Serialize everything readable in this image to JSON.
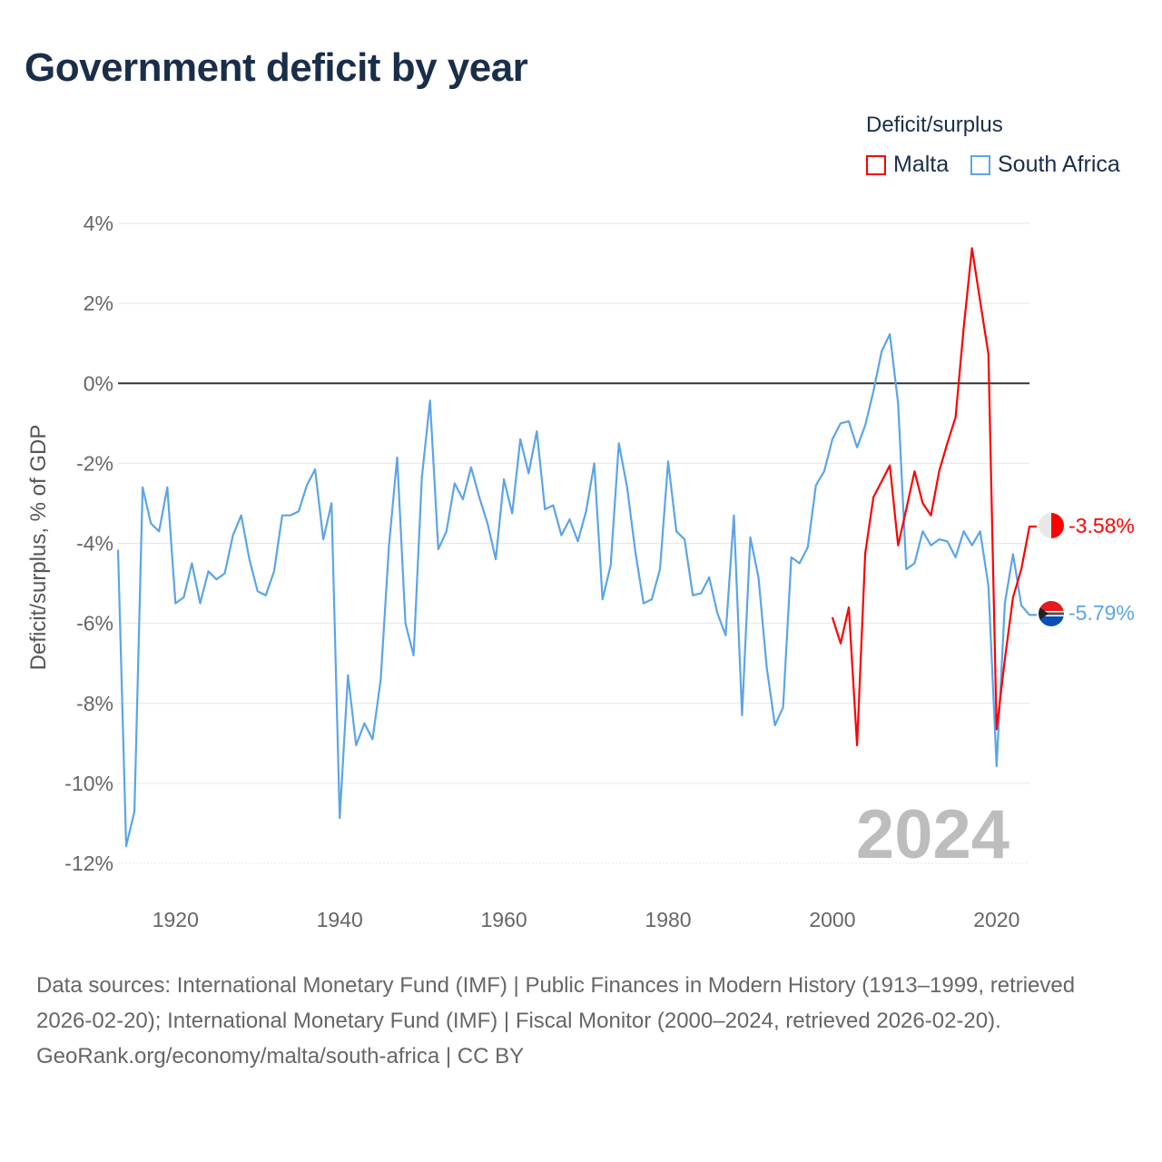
{
  "title": "Government deficit by year",
  "legend": {
    "title": "Deficit/surplus",
    "items": [
      {
        "label": "Malta",
        "color": "#ff0000"
      },
      {
        "label": "South Africa",
        "color": "#5ba4ea"
      }
    ]
  },
  "year_label": "2024",
  "end_labels": {
    "malta": "-3.58%",
    "south_africa": "-5.79%"
  },
  "source": {
    "text": "Data sources: International Monetary Fund (IMF) | Public Finances in Modern History (1913–1999, retrieved 2026-02-20); International Monetary Fund (IMF) | Fiscal Monitor (2000–2024, retrieved 2026-02-20).",
    "credit": "GeoRank.org/economy/malta/south-africa | CC BY"
  },
  "chart_data": {
    "type": "line",
    "title": "Government deficit by year",
    "xlabel": "",
    "ylabel": "Deficit/surplus, % of GDP",
    "xlim": [
      1913,
      2024
    ],
    "ylim": [
      -12,
      4
    ],
    "x_ticks": [
      1920,
      1940,
      1960,
      1980,
      2000,
      2020
    ],
    "x_tick_labels": [
      "1920",
      "1940",
      "1960",
      "1980",
      "2000",
      "2020"
    ],
    "y_ticks": [
      4,
      2,
      0,
      -2,
      -4,
      -6,
      -8,
      -10,
      -12
    ],
    "y_tick_labels": [
      "4%",
      "2%",
      "0%",
      "-2%",
      "-4%",
      "-6%",
      "-8%",
      "-10%",
      "-12%"
    ],
    "grid": true,
    "legend_position": "top-right",
    "series": [
      {
        "name": "South Africa",
        "color": "#5ba4ea",
        "start_year": 1913,
        "values": [
          -4.16,
          -11.57,
          -10.7,
          -2.6,
          -3.5,
          -3.7,
          -2.6,
          -5.5,
          -5.35,
          -4.5,
          -5.5,
          -4.7,
          -4.9,
          -4.75,
          -3.8,
          -3.3,
          -4.4,
          -5.2,
          -5.3,
          -4.7,
          -3.3,
          -3.3,
          -3.2,
          -2.55,
          -2.15,
          -3.9,
          -3.0,
          -10.87,
          -7.3,
          -9.05,
          -8.5,
          -8.9,
          -7.4,
          -4.05,
          -1.85,
          -6.0,
          -6.8,
          -2.35,
          -0.43,
          -4.15,
          -3.7,
          -2.5,
          -2.9,
          -2.1,
          -2.85,
          -3.5,
          -4.4,
          -2.4,
          -3.25,
          -1.4,
          -2.25,
          -1.2,
          -3.15,
          -3.05,
          -3.8,
          -3.4,
          -3.95,
          -3.2,
          -2.0,
          -5.4,
          -4.55,
          -1.5,
          -2.6,
          -4.2,
          -5.5,
          -5.4,
          -4.65,
          -1.95,
          -3.7,
          -3.9,
          -5.3,
          -5.25,
          -4.85,
          -5.75,
          -6.3,
          -3.3,
          -8.3,
          -3.85,
          -4.85,
          -7.1,
          -8.55,
          -8.1,
          -4.35,
          -4.5,
          -4.1,
          -2.55,
          -2.2,
          -1.4,
          -1.0,
          -0.95,
          -1.6,
          -1.05,
          -0.2,
          0.8,
          1.23,
          -0.5,
          -4.65,
          -4.5,
          -3.7,
          -4.05,
          -3.9,
          -3.95,
          -4.35,
          -3.7,
          -4.05,
          -3.7,
          -5.07,
          -9.57,
          -5.5,
          -4.27,
          -5.55,
          -5.79
        ]
      },
      {
        "name": "Malta",
        "color": "#ff0000",
        "start_year": 2000,
        "values": [
          -5.85,
          -6.5,
          -5.6,
          -9.05,
          -4.25,
          -2.85,
          -2.45,
          -2.05,
          -4.05,
          -3.15,
          -2.2,
          -3.0,
          -3.3,
          -2.2,
          -1.5,
          -0.85,
          1.4,
          3.38,
          2.05,
          0.73,
          -8.65,
          -6.9,
          -5.35,
          -4.65,
          -3.58
        ]
      }
    ]
  }
}
